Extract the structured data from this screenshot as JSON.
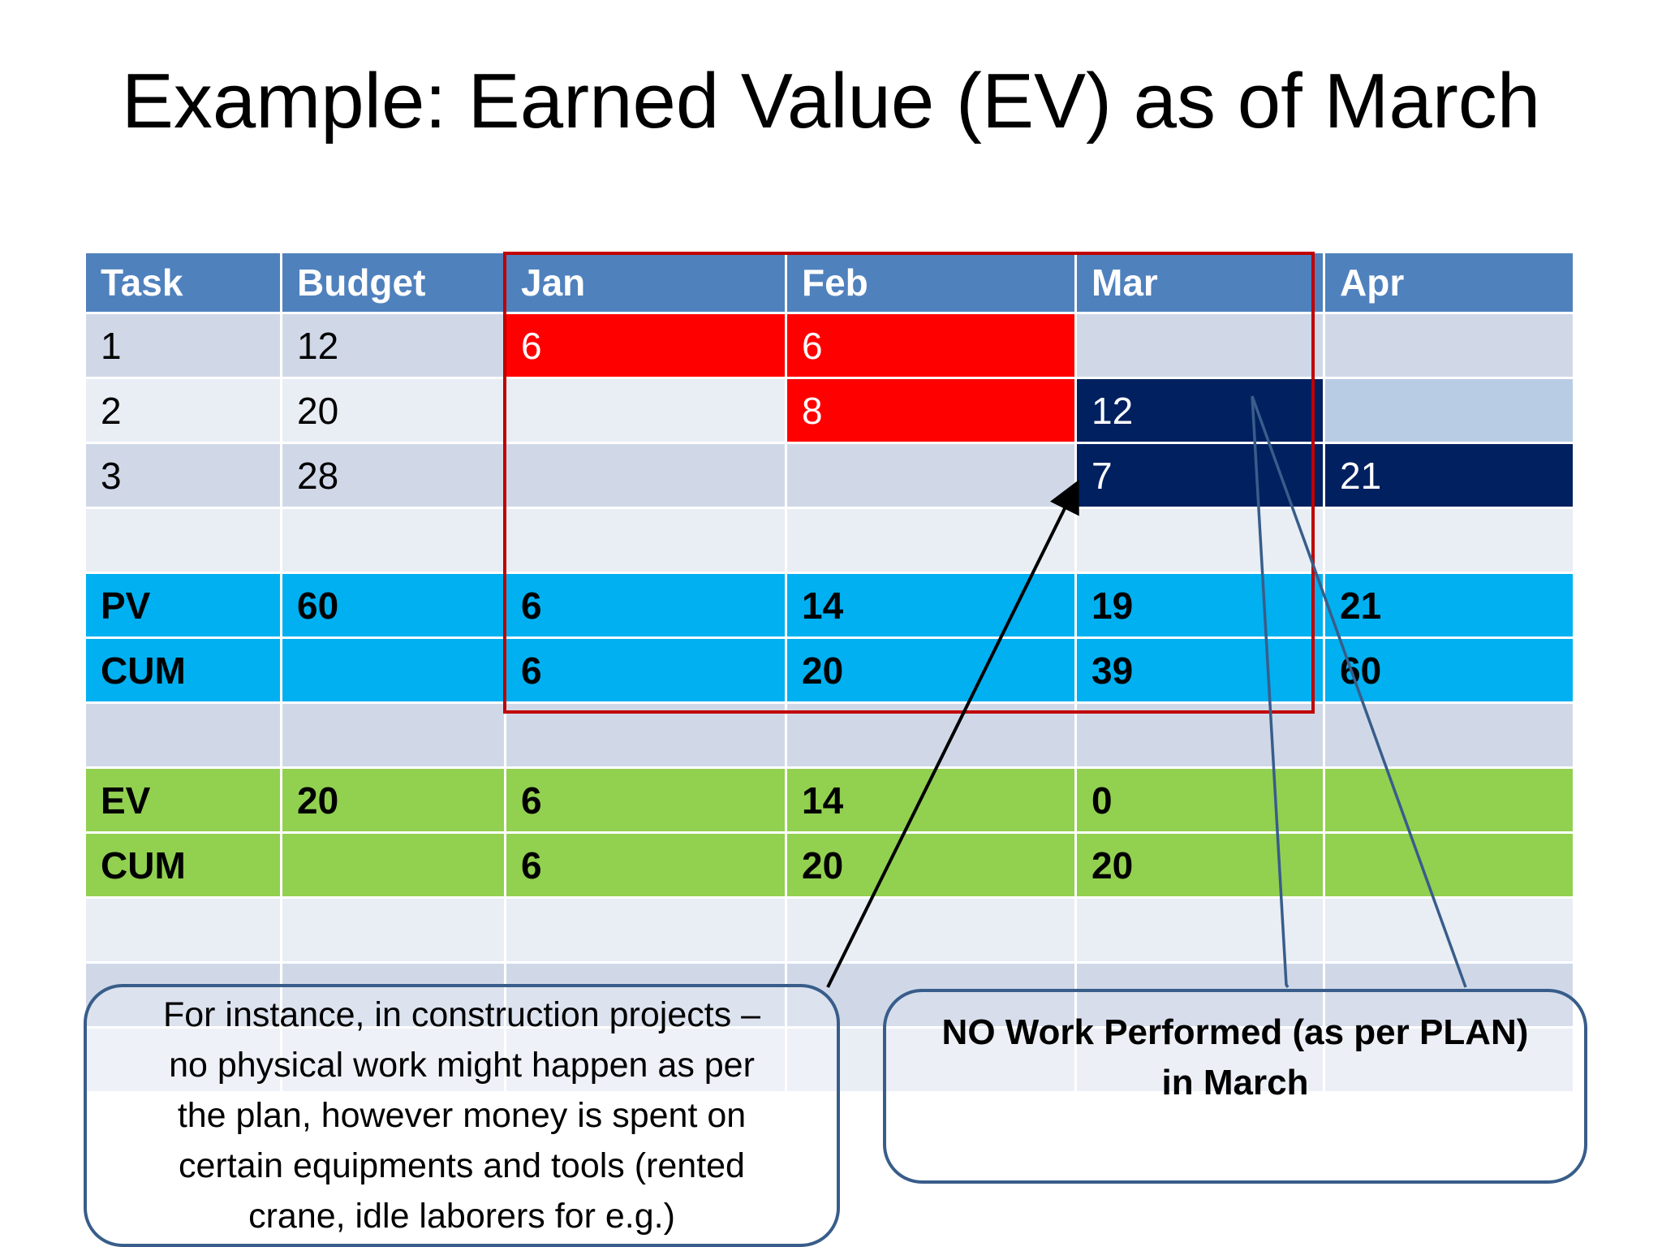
{
  "title": "Example: Earned Value (EV) as of March",
  "colors": {
    "header": "#4f81bd",
    "row_dark": "#d0d8e8",
    "row_light": "#e9edf4",
    "pv": "#00b0f0",
    "ev": "#92d050",
    "planned_done": "#ff0000",
    "planned_march": "#002060",
    "highlight_box": "#c00000",
    "callout_border": "#385d8a"
  },
  "table": {
    "headers": [
      "Task",
      "Budget",
      "Jan",
      "Feb",
      "Mar",
      "Apr"
    ],
    "rows": [
      [
        "1",
        "12",
        "6",
        "6",
        "",
        ""
      ],
      [
        "2",
        "20",
        "",
        "8",
        "12",
        ""
      ],
      [
        "3",
        "28",
        "",
        "",
        "7",
        "21"
      ],
      [
        "",
        "",
        "",
        "",
        "",
        ""
      ],
      [
        "PV",
        "60",
        "6",
        "14",
        "19",
        "21"
      ],
      [
        "CUM",
        "",
        "6",
        "20",
        "39",
        "60"
      ],
      [
        "",
        "",
        "",
        "",
        "",
        ""
      ],
      [
        "EV",
        "20",
        "6",
        "14",
        "0",
        ""
      ],
      [
        "CUM",
        "",
        "6",
        "20",
        "20",
        ""
      ],
      [
        "",
        "",
        "",
        "",
        "",
        ""
      ],
      [
        "",
        "",
        "",
        "",
        "",
        ""
      ],
      [
        "",
        "",
        "",
        "",
        "",
        ""
      ]
    ]
  },
  "callouts": {
    "left": {
      "lines": [
        "For instance, in construction projects –",
        "no physical work might happen as per",
        "the plan, however money is spent on",
        "certain equipments and tools (rented",
        "crane, idle laborers for e.g.)"
      ]
    },
    "right": {
      "lines": [
        "NO Work Performed (as per PLAN)",
        "in March"
      ]
    }
  }
}
